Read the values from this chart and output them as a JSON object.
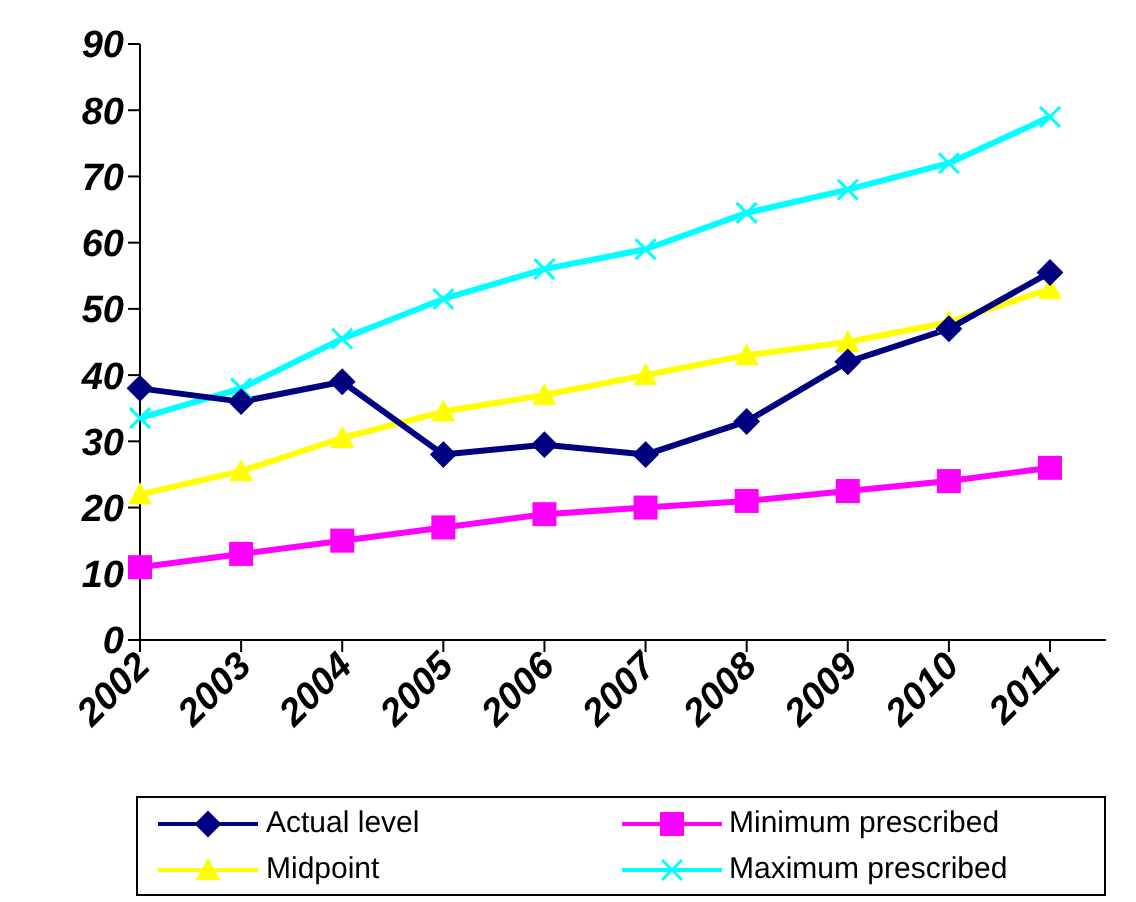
{
  "chart_data": {
    "type": "line",
    "categories": [
      "2002",
      "2003",
      "2004",
      "2005",
      "2006",
      "2007",
      "2008",
      "2009",
      "2010",
      "2011"
    ],
    "series": [
      {
        "name": "Actual level",
        "color": "#000080",
        "marker": "diamond",
        "values": [
          38,
          36,
          39,
          28,
          29.5,
          28,
          33,
          42,
          47,
          55.5
        ]
      },
      {
        "name": "Minimum prescribed",
        "color": "#ff00ff",
        "marker": "square",
        "values": [
          11,
          13,
          15,
          17,
          19,
          20,
          21,
          22.5,
          24,
          26
        ]
      },
      {
        "name": "Midpoint",
        "color": "#ffff00",
        "marker": "triangle",
        "values": [
          22,
          25.5,
          30.5,
          34.5,
          37,
          40,
          43,
          45,
          48,
          53
        ]
      },
      {
        "name": "Maximum prescribed",
        "color": "#00ffff",
        "marker": "cross",
        "values": [
          33.5,
          38,
          45.5,
          51.5,
          56,
          59,
          64.5,
          68,
          72,
          79
        ]
      }
    ],
    "ylim": [
      0,
      90
    ],
    "yticks": [
      0,
      10,
      20,
      30,
      40,
      50,
      60,
      70,
      80,
      90
    ],
    "grid": false,
    "legend": "bottom"
  }
}
